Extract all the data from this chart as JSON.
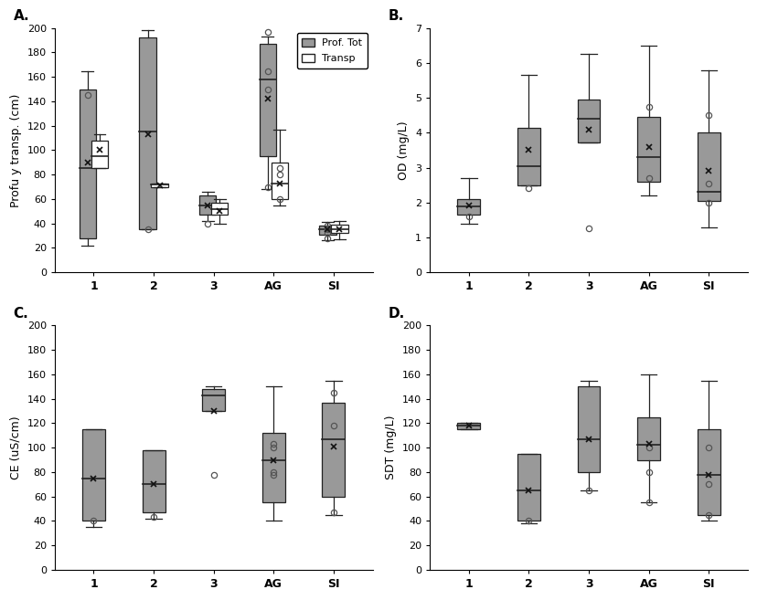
{
  "panel_A": {
    "label": "A.",
    "ylabel": "Profu y transp. (cm)",
    "ylim": [
      0,
      200
    ],
    "yticks": [
      0,
      20,
      40,
      60,
      80,
      100,
      120,
      140,
      160,
      180,
      200
    ],
    "categories": [
      "1",
      "2",
      "3",
      "AG",
      "SI"
    ],
    "prof_tot": {
      "color": "#999999",
      "boxes": [
        {
          "q1": 28,
          "median": 85,
          "q3": 150,
          "whislo": 22,
          "whishi": 165,
          "mean": 90,
          "fliers": [
            145
          ]
        },
        {
          "q1": 35,
          "median": 115,
          "q3": 192,
          "whislo": 35,
          "whishi": 198,
          "mean": 113,
          "fliers": [
            35
          ]
        },
        {
          "q1": 47,
          "median": 55,
          "q3": 63,
          "whislo": 42,
          "whishi": 66,
          "mean": 55,
          "fliers": [
            40
          ]
        },
        {
          "q1": 95,
          "median": 158,
          "q3": 187,
          "whislo": 68,
          "whishi": 193,
          "mean": 142,
          "fliers": [
            70,
            150,
            165,
            197
          ]
        },
        {
          "q1": 31,
          "median": 35,
          "q3": 38,
          "whislo": 26,
          "whishi": 41,
          "mean": 35,
          "fliers": [
            28,
            32,
            35,
            38,
            36
          ]
        }
      ]
    },
    "transp": {
      "color": "#ffffff",
      "boxes": [
        {
          "q1": 85,
          "median": 95,
          "q3": 108,
          "whislo": 85,
          "whishi": 113,
          "mean": 100,
          "fliers": []
        },
        {
          "q1": 70,
          "median": 72,
          "q3": 73,
          "whislo": 70,
          "whishi": 73,
          "mean": 71,
          "fliers": []
        },
        {
          "q1": 47,
          "median": 52,
          "q3": 57,
          "whislo": 40,
          "whishi": 60,
          "mean": 50,
          "fliers": []
        },
        {
          "q1": 60,
          "median": 73,
          "q3": 90,
          "whislo": 55,
          "whishi": 117,
          "mean": 73,
          "fliers": [
            60,
            80,
            85
          ]
        },
        {
          "q1": 32,
          "median": 35,
          "q3": 39,
          "whislo": 27,
          "whishi": 42,
          "mean": 35,
          "fliers": []
        }
      ]
    },
    "legend": true
  },
  "panel_B": {
    "label": "B.",
    "ylabel": "OD (mg/L)",
    "ylim": [
      0,
      7
    ],
    "yticks": [
      0,
      1,
      2,
      3,
      4,
      5,
      6,
      7
    ],
    "categories": [
      "1",
      "2",
      "3",
      "AG",
      "SI"
    ],
    "boxes": [
      {
        "q1": 1.65,
        "median": 1.9,
        "q3": 2.1,
        "whislo": 1.4,
        "whishi": 2.7,
        "mean": 1.92,
        "fliers": [
          1.6
        ]
      },
      {
        "q1": 2.5,
        "median": 3.05,
        "q3": 4.15,
        "whislo": 2.5,
        "whishi": 5.65,
        "mean": 3.5,
        "fliers": [
          2.4
        ]
      },
      {
        "q1": 3.72,
        "median": 4.4,
        "q3": 4.95,
        "whislo": 3.72,
        "whishi": 6.25,
        "mean": 4.1,
        "fliers": [
          1.25
        ]
      },
      {
        "q1": 2.6,
        "median": 3.3,
        "q3": 4.45,
        "whislo": 2.2,
        "whishi": 6.5,
        "mean": 3.6,
        "fliers": [
          2.7,
          4.75
        ]
      },
      {
        "q1": 2.05,
        "median": 2.3,
        "q3": 4.0,
        "whislo": 1.28,
        "whishi": 5.8,
        "mean": 2.9,
        "fliers": [
          2.55,
          4.5,
          2.0
        ]
      }
    ],
    "color": "#999999"
  },
  "panel_C": {
    "label": "C.",
    "ylabel": "CE (uS∕cm)",
    "ylim": [
      0,
      200
    ],
    "yticks": [
      0,
      20,
      40,
      60,
      80,
      100,
      120,
      140,
      160,
      180,
      200
    ],
    "categories": [
      "1",
      "2",
      "3",
      "AG",
      "SI"
    ],
    "boxes": [
      {
        "q1": 40,
        "median": 75,
        "q3": 115,
        "whislo": 35,
        "whishi": 115,
        "mean": 75,
        "fliers": [
          40
        ]
      },
      {
        "q1": 47,
        "median": 70,
        "q3": 98,
        "whislo": 42,
        "whishi": 98,
        "mean": 70,
        "fliers": [
          43
        ]
      },
      {
        "q1": 130,
        "median": 143,
        "q3": 148,
        "whislo": 130,
        "whishi": 150,
        "mean": 130,
        "fliers": [
          78
        ]
      },
      {
        "q1": 55,
        "median": 90,
        "q3": 112,
        "whislo": 40,
        "whishi": 150,
        "mean": 90,
        "fliers": [
          78,
          80,
          100,
          103
        ]
      },
      {
        "q1": 60,
        "median": 107,
        "q3": 137,
        "whislo": 45,
        "whishi": 155,
        "mean": 101,
        "fliers": [
          145,
          118,
          47
        ]
      }
    ],
    "color": "#999999"
  },
  "panel_D": {
    "label": "D.",
    "ylabel": "SDT (mg/L)",
    "ylim": [
      0,
      200
    ],
    "yticks": [
      0,
      20,
      40,
      60,
      80,
      100,
      120,
      140,
      160,
      180,
      200
    ],
    "categories": [
      "1",
      "2",
      "3",
      "AG",
      "SI"
    ],
    "boxes": [
      {
        "q1": 115,
        "median": 118,
        "q3": 120,
        "whislo": 115,
        "whishi": 120,
        "mean": 118,
        "fliers": []
      },
      {
        "q1": 40,
        "median": 65,
        "q3": 95,
        "whislo": 38,
        "whishi": 95,
        "mean": 65,
        "fliers": [
          40
        ]
      },
      {
        "q1": 80,
        "median": 107,
        "q3": 150,
        "whislo": 65,
        "whishi": 155,
        "mean": 107,
        "fliers": [
          65
        ]
      },
      {
        "q1": 90,
        "median": 102,
        "q3": 125,
        "whislo": 55,
        "whishi": 160,
        "mean": 103,
        "fliers": [
          55,
          80,
          100
        ]
      },
      {
        "q1": 45,
        "median": 78,
        "q3": 115,
        "whislo": 40,
        "whishi": 155,
        "mean": 78,
        "fliers": [
          45,
          70,
          100
        ]
      }
    ],
    "color": "#999999"
  },
  "box_color": "#999999",
  "box_edge_color": "#222222",
  "flier_color": "#555555",
  "mean_color": "#111111",
  "background_color": "#ffffff"
}
